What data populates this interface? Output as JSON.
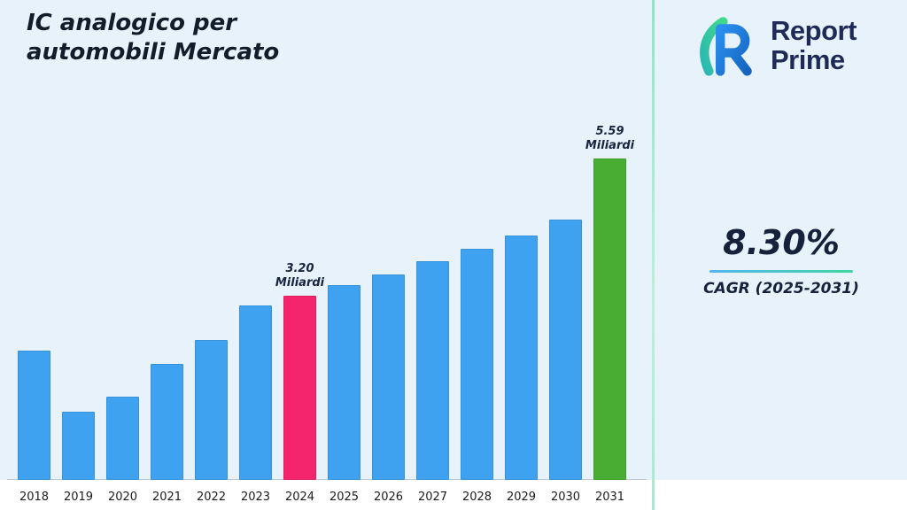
{
  "title": {
    "line1": "IC analogico per",
    "line2": "automobili Mercato"
  },
  "logo": {
    "name_line1": "Report",
    "name_line2": "Prime",
    "brand_color": "#1e2b58",
    "mark_blue": "#2b8ff0",
    "mark_green_start": "#3fd98a",
    "mark_green_end": "#2bb7b3"
  },
  "right_panel": {
    "cagr_value": "8.30%",
    "cagr_label": "CAGR (2025-2031)"
  },
  "chart_data": {
    "type": "bar",
    "title": "IC analogico per automobili Mercato",
    "categories": [
      "2018",
      "2019",
      "2020",
      "2021",
      "2022",
      "2023",
      "2024",
      "2025",
      "2026",
      "2027",
      "2028",
      "2029",
      "2030",
      "2031"
    ],
    "values": [
      2.25,
      1.18,
      1.45,
      2.02,
      2.43,
      3.03,
      3.2,
      3.38,
      3.57,
      3.8,
      4.02,
      4.24,
      4.53,
      5.59
    ],
    "unit": "Miliardi",
    "ylim": [
      0,
      6
    ],
    "grid": false,
    "legend": "none",
    "bar_color_default": "#3ea2f1",
    "highlights": [
      {
        "index": 6,
        "color": "#f5256d",
        "label_line1": "3.20",
        "label_line2": "Miliardi"
      },
      {
        "index": 13,
        "color": "#49ad33",
        "label_line1": "5.59",
        "label_line2": "Miliardi"
      }
    ],
    "colors": {
      "background": "#e8f2fb",
      "bottom_strip": "#ffffff",
      "divider": "#8fe5c6",
      "underline_gradient": [
        "#57b5ef",
        "#40d6a0"
      ]
    }
  }
}
